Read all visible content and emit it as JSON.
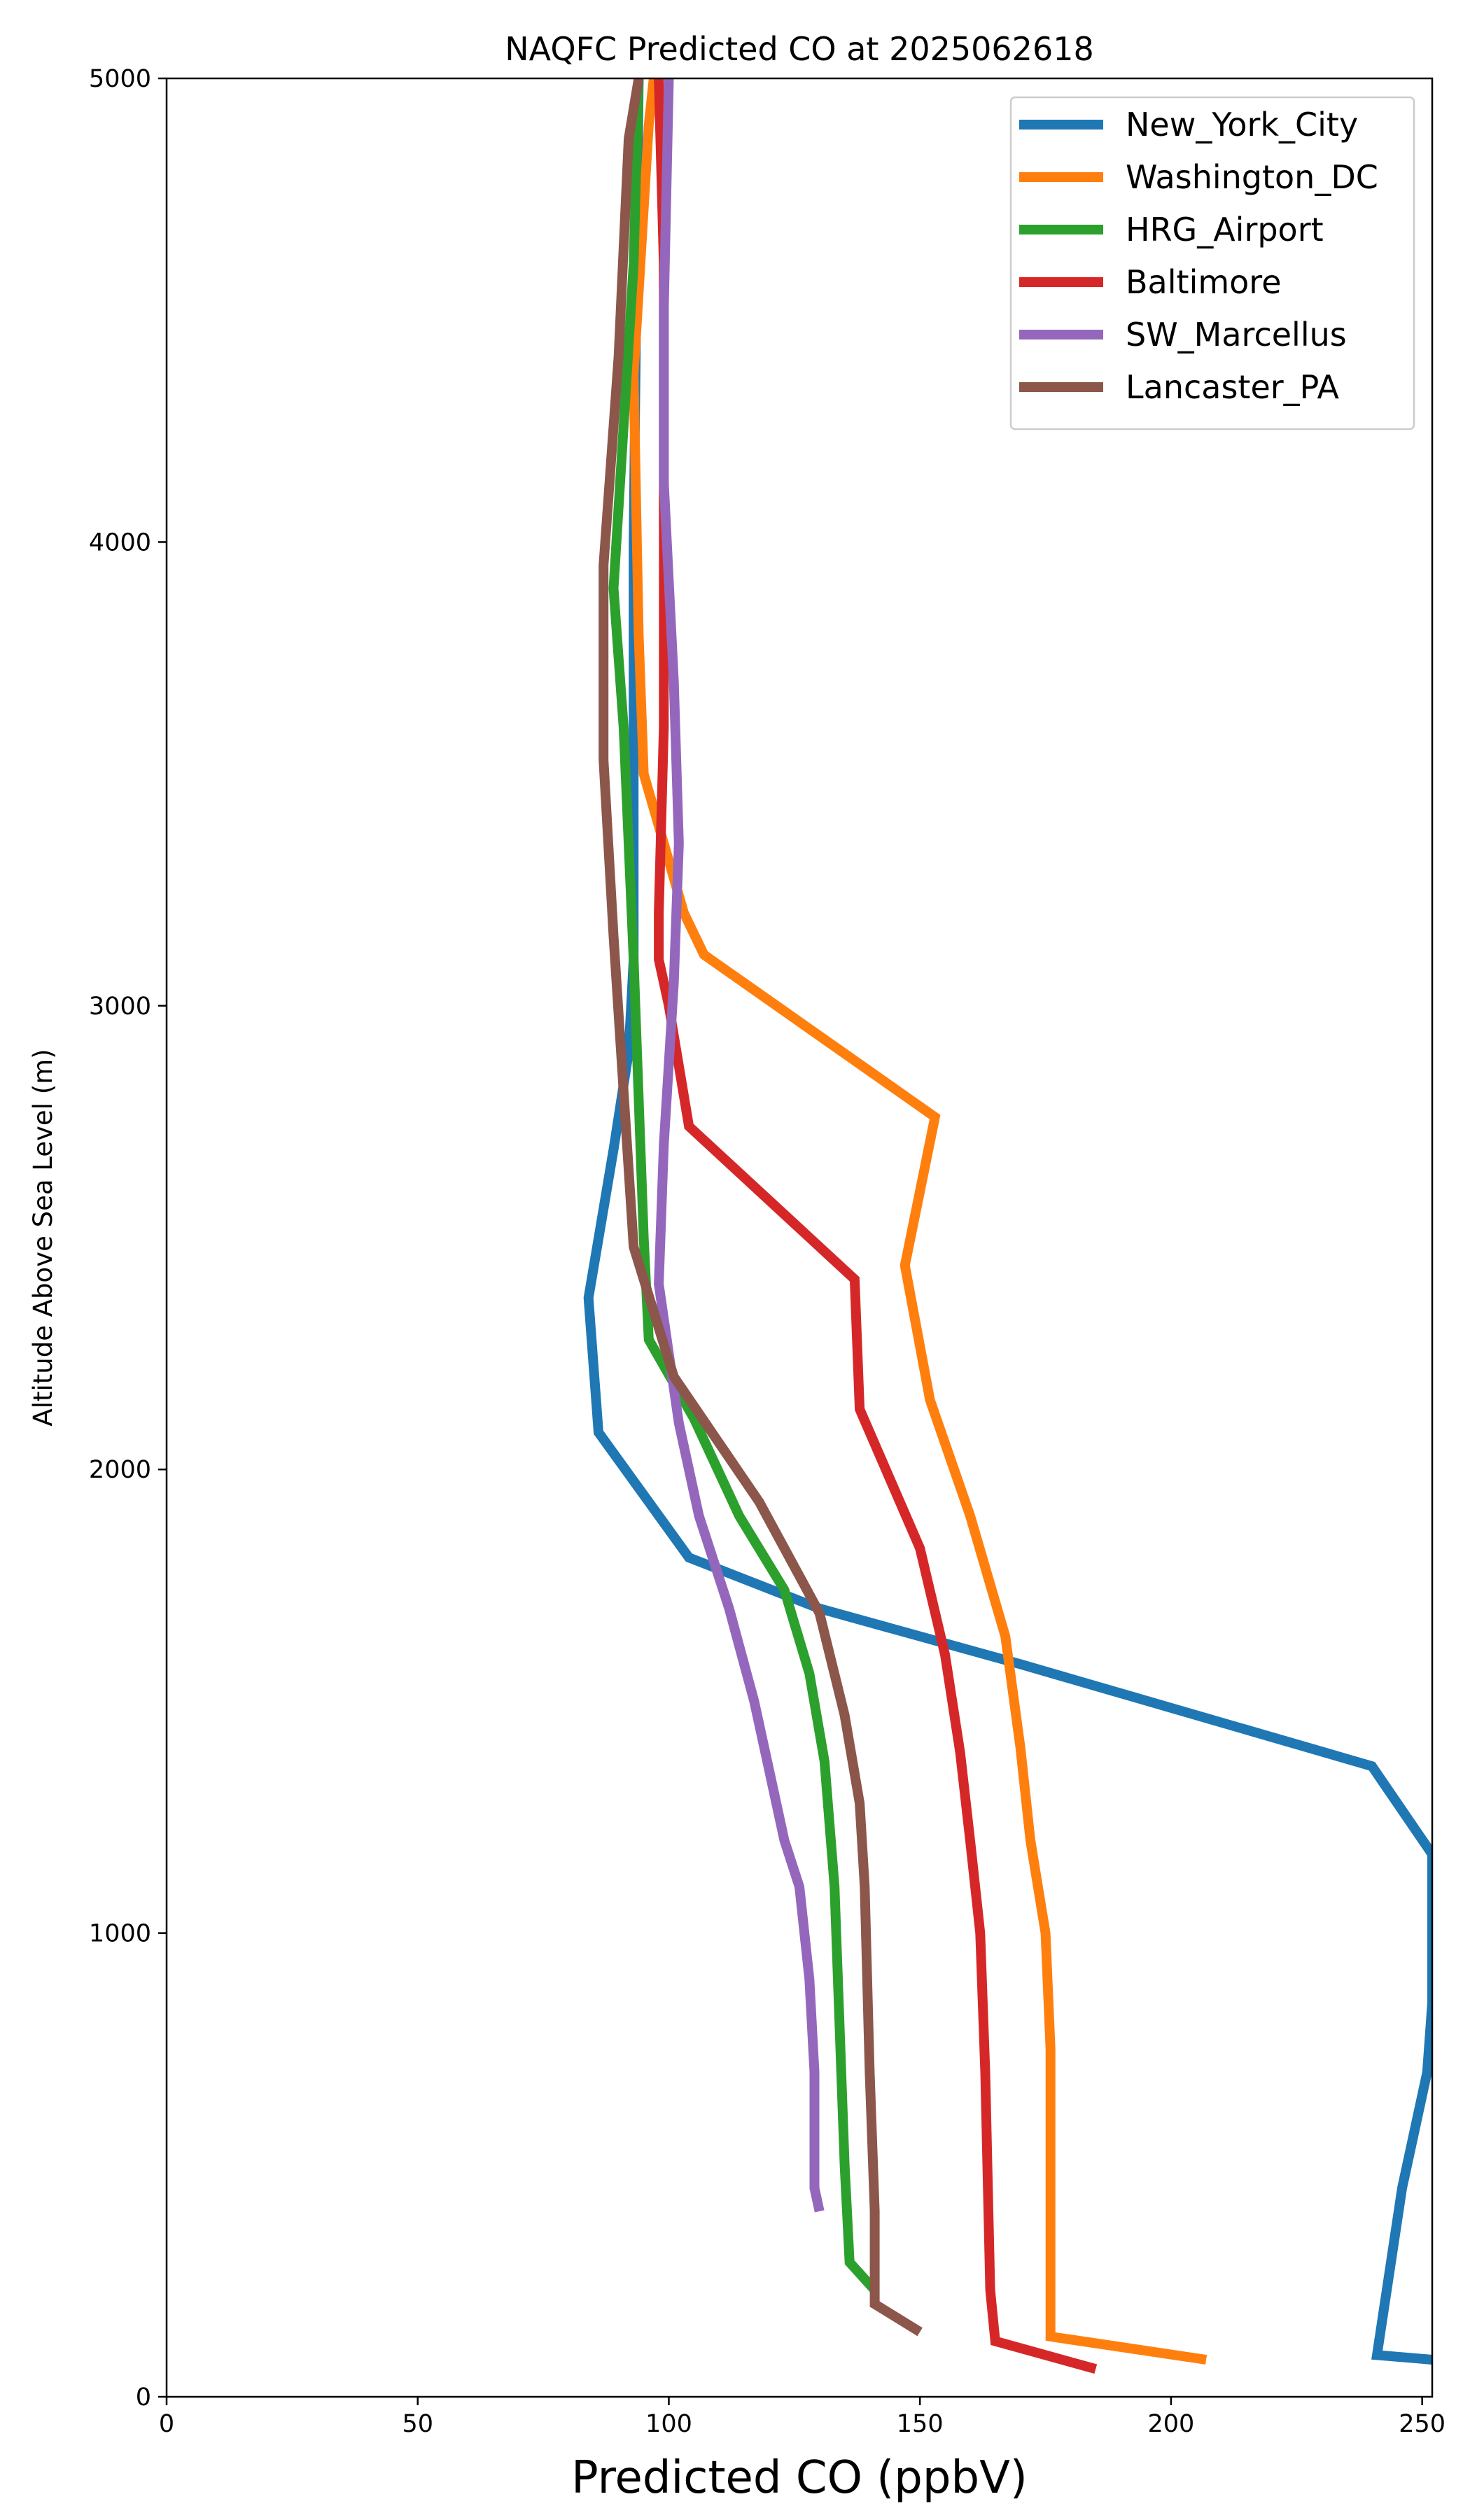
{
  "chart_data": {
    "type": "line",
    "title": "NAQFC Predicted CO at 2025062618",
    "xlabel": "Predicted CO (ppbV)",
    "ylabel": "Altitude Above Sea Level (m)",
    "xlim": [
      0,
      252
    ],
    "ylim": [
      0,
      5000
    ],
    "xticks": [
      0,
      50,
      100,
      150,
      200,
      250
    ],
    "yticks": [
      0,
      1000,
      2000,
      3000,
      4000,
      5000
    ],
    "grid": false,
    "legend_position": "top-right",
    "series": [
      {
        "name": "New_York_City",
        "color": "#1f77b4",
        "points": [
          [
            252,
            80
          ],
          [
            241,
            90
          ],
          [
            246,
            450
          ],
          [
            251,
            700
          ],
          [
            252,
            850
          ],
          [
            252,
            1170
          ],
          [
            240,
            1360
          ],
          [
            170,
            1580
          ],
          [
            130,
            1700
          ],
          [
            104,
            1810
          ],
          [
            86,
            2080
          ],
          [
            84,
            2370
          ],
          [
            89,
            2690
          ],
          [
            92,
            2900
          ],
          [
            93,
            3100
          ],
          [
            93,
            4000
          ],
          [
            94,
            5000
          ]
        ]
      },
      {
        "name": "Washington_DC",
        "color": "#ff7f0e",
        "points": [
          [
            207,
            80
          ],
          [
            176,
            130
          ],
          [
            176,
            200
          ],
          [
            176,
            750
          ],
          [
            175,
            1000
          ],
          [
            172,
            1200
          ],
          [
            170,
            1400
          ],
          [
            167,
            1640
          ],
          [
            160,
            1900
          ],
          [
            152,
            2150
          ],
          [
            147,
            2440
          ],
          [
            153,
            2760
          ],
          [
            107,
            3110
          ],
          [
            103,
            3200
          ],
          [
            95,
            3500
          ],
          [
            94,
            3800
          ],
          [
            93,
            4360
          ],
          [
            96,
            4900
          ],
          [
            97,
            5000
          ]
        ]
      },
      {
        "name": "HRG_Airport",
        "color": "#2ca02c",
        "points": [
          [
            141,
            230
          ],
          [
            136,
            290
          ],
          [
            135,
            500
          ],
          [
            134,
            800
          ],
          [
            133,
            1100
          ],
          [
            131,
            1370
          ],
          [
            128,
            1560
          ],
          [
            123,
            1740
          ],
          [
            114,
            1900
          ],
          [
            105,
            2110
          ],
          [
            96,
            2280
          ],
          [
            95,
            2500
          ],
          [
            93,
            3100
          ],
          [
            91,
            3600
          ],
          [
            89,
            3900
          ],
          [
            93,
            4600
          ],
          [
            94,
            5000
          ]
        ]
      },
      {
        "name": "Baltimore",
        "color": "#d62728",
        "points": [
          [
            185,
            60
          ],
          [
            165,
            120
          ],
          [
            164,
            230
          ],
          [
            163,
            700
          ],
          [
            162,
            1000
          ],
          [
            160,
            1200
          ],
          [
            158,
            1390
          ],
          [
            155,
            1600
          ],
          [
            150,
            1830
          ],
          [
            138,
            2130
          ],
          [
            137,
            2410
          ],
          [
            104,
            2740
          ],
          [
            100,
            3000
          ],
          [
            98,
            3100
          ],
          [
            98,
            3200
          ],
          [
            99,
            3600
          ],
          [
            99,
            4600
          ],
          [
            98,
            5000
          ]
        ]
      },
      {
        "name": "SW_Marcellus",
        "color": "#9467bd",
        "points": [
          [
            130,
            400
          ],
          [
            129,
            450
          ],
          [
            129,
            700
          ],
          [
            128,
            900
          ],
          [
            126,
            1100
          ],
          [
            123,
            1200
          ],
          [
            120,
            1350
          ],
          [
            117,
            1500
          ],
          [
            112,
            1700
          ],
          [
            106,
            1900
          ],
          [
            102,
            2100
          ],
          [
            98,
            2400
          ],
          [
            99,
            2700
          ],
          [
            101,
            3050
          ],
          [
            102,
            3350
          ],
          [
            101,
            3700
          ],
          [
            99,
            4130
          ],
          [
            99,
            4500
          ],
          [
            100,
            5000
          ]
        ]
      },
      {
        "name": "Lancaster_PA",
        "color": "#8c564b",
        "points": [
          [
            150,
            140
          ],
          [
            141,
            200
          ],
          [
            141,
            400
          ],
          [
            140,
            700
          ],
          [
            139,
            1100
          ],
          [
            138,
            1280
          ],
          [
            135,
            1470
          ],
          [
            130,
            1690
          ],
          [
            118,
            1930
          ],
          [
            101,
            2200
          ],
          [
            93,
            2480
          ],
          [
            89,
            3150
          ],
          [
            87,
            3530
          ],
          [
            87,
            3950
          ],
          [
            90,
            4400
          ],
          [
            92,
            4870
          ],
          [
            94,
            5000
          ]
        ]
      }
    ]
  }
}
